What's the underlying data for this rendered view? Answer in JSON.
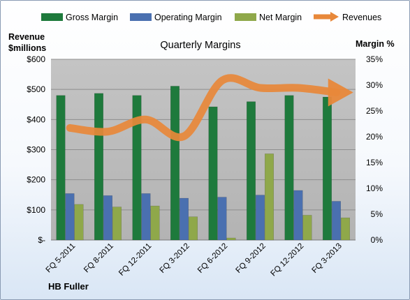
{
  "chart_data": {
    "type": "bar",
    "title": "Quarterly Margins",
    "company": "HB Fuller",
    "categories": [
      "FQ 5-2011",
      "FQ 8-2011",
      "FQ 12-2011",
      "FQ 3-2012",
      "FQ 6-2012",
      "FQ 9-2012",
      "FQ 12-2012",
      "FQ 3-2013"
    ],
    "y_left": {
      "label_line1": "Revenue",
      "label_line2": "$millions",
      "ticks": [
        "$-",
        "$100",
        "$200",
        "$300",
        "$400",
        "$500",
        "$600"
      ],
      "range": [
        0,
        600
      ]
    },
    "y_right": {
      "label": "Margin %",
      "ticks": [
        "0%",
        "5%",
        "10%",
        "15%",
        "20%",
        "25%",
        "30%",
        "35%"
      ],
      "range": [
        0,
        35
      ]
    },
    "series": [
      {
        "name": "Gross Margin",
        "axis": "right",
        "kind": "bar",
        "color": "#1e7a3c",
        "values": [
          28.0,
          28.4,
          28.0,
          29.8,
          25.8,
          26.8,
          28.0,
          27.7
        ]
      },
      {
        "name": "Operating Margin",
        "axis": "right",
        "kind": "bar",
        "color": "#4a70b0",
        "values": [
          9.0,
          8.6,
          9.0,
          8.1,
          8.3,
          8.7,
          9.6,
          7.5
        ]
      },
      {
        "name": "Net Margin",
        "axis": "right",
        "kind": "bar",
        "color": "#8fa84a",
        "values": [
          6.9,
          6.4,
          6.6,
          4.5,
          0.4,
          16.7,
          4.8,
          4.3
        ]
      },
      {
        "name": "Revenues",
        "axis": "left",
        "kind": "line",
        "color": "#e8883a",
        "values": [
          372,
          360,
          400,
          345,
          530,
          505,
          505,
          490
        ]
      }
    ],
    "grid": true,
    "legend_position": "top"
  }
}
